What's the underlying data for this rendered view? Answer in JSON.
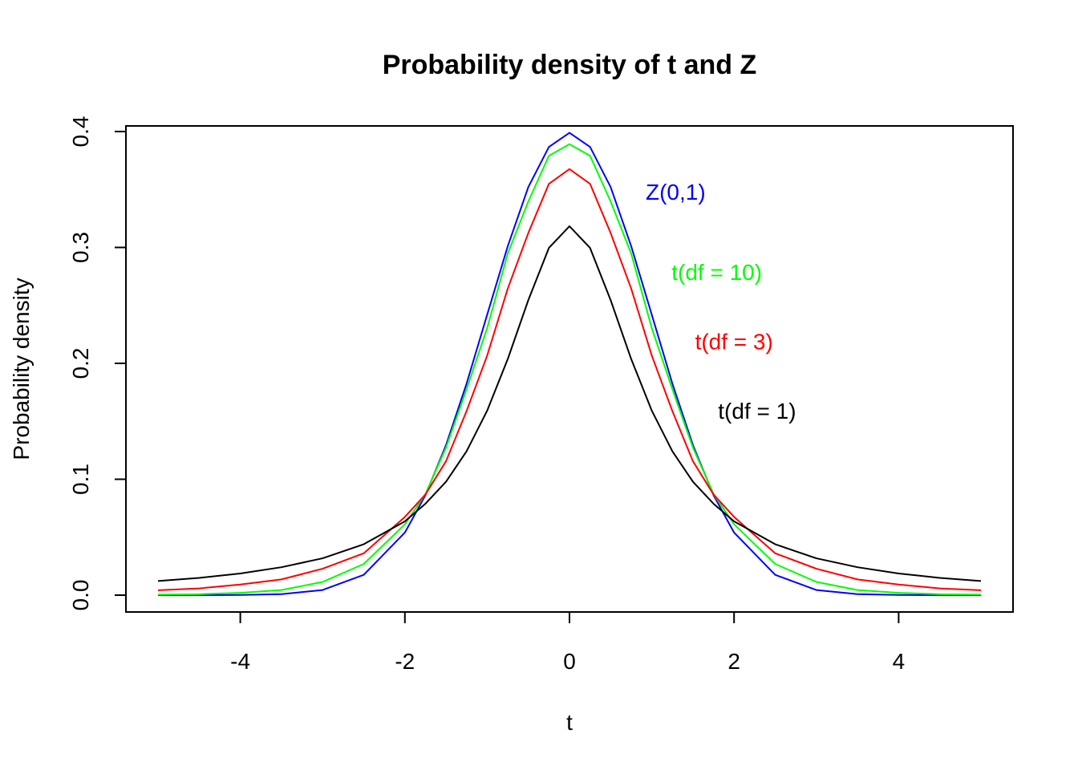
{
  "chart_data": {
    "type": "line",
    "title": "Probability density of t and Z",
    "xlabel": "t",
    "ylabel": "Probability density",
    "xlim": [
      -5,
      5
    ],
    "ylim": [
      0,
      0.4
    ],
    "xticks": [
      -4,
      -2,
      0,
      2,
      4
    ],
    "xtick_labels": [
      "-4",
      "-2",
      "0",
      "2",
      "4"
    ],
    "yticks": [
      0.0,
      0.1,
      0.2,
      0.3,
      0.4
    ],
    "ytick_labels": [
      "0.0",
      "0.1",
      "0.2",
      "0.3",
      "0.4"
    ],
    "grid": false,
    "legend": "none",
    "series": [
      {
        "name": "Z(0,1)",
        "color": "#0000ff",
        "x": [
          -5,
          -4.5,
          -4,
          -3.5,
          -3,
          -2.5,
          -2,
          -1.75,
          -1.5,
          -1.25,
          -1,
          -0.75,
          -0.5,
          -0.25,
          0,
          0.25,
          0.5,
          0.75,
          1,
          1.25,
          1.5,
          1.75,
          2,
          2.5,
          3,
          3.5,
          4,
          4.5,
          5
        ],
        "y": [
          1.5e-06,
          1.6e-05,
          0.000134,
          0.000873,
          0.00443,
          0.0175,
          0.054,
          0.0863,
          0.1295,
          0.1826,
          0.242,
          0.3011,
          0.3521,
          0.3867,
          0.3989,
          0.3867,
          0.3521,
          0.3011,
          0.242,
          0.1826,
          0.1295,
          0.0863,
          0.054,
          0.0175,
          0.00443,
          0.000873,
          0.000134,
          1.6e-05,
          1.5e-06
        ]
      },
      {
        "name": "t(df = 10)",
        "color": "#00ff00",
        "x": [
          -5,
          -4.5,
          -4,
          -3.5,
          -3,
          -2.5,
          -2,
          -1.75,
          -1.5,
          -1.25,
          -1,
          -0.75,
          -0.5,
          -0.25,
          0,
          0.25,
          0.5,
          0.75,
          1,
          1.25,
          1.5,
          1.75,
          2,
          2.5,
          3,
          3.5,
          4,
          4.5,
          5
        ],
        "y": [
          0.000396,
          0.000808,
          0.00203,
          0.0044,
          0.0114,
          0.0269,
          0.0611,
          0.0873,
          0.1274,
          0.1778,
          0.2304,
          0.2947,
          0.3397,
          0.3791,
          0.3891,
          0.3791,
          0.3397,
          0.2947,
          0.2304,
          0.1778,
          0.1274,
          0.0873,
          0.0611,
          0.0269,
          0.0114,
          0.0044,
          0.00203,
          0.000808,
          0.000396
        ]
      },
      {
        "name": "t(df = 3)",
        "color": "#ff0000",
        "x": [
          -5,
          -4.5,
          -4,
          -3.5,
          -3,
          -2.5,
          -2,
          -1.75,
          -1.5,
          -1.25,
          -1,
          -0.75,
          -0.5,
          -0.25,
          0,
          0.25,
          0.5,
          0.75,
          1,
          1.25,
          1.5,
          1.75,
          2,
          2.5,
          3,
          3.5,
          4,
          4.5,
          5
        ],
        "y": [
          0.00422,
          0.00582,
          0.00916,
          0.0136,
          0.0228,
          0.0361,
          0.0675,
          0.0869,
          0.1156,
          0.1589,
          0.2067,
          0.2645,
          0.3125,
          0.3549,
          0.3676,
          0.3549,
          0.3125,
          0.2645,
          0.2067,
          0.1589,
          0.1156,
          0.0869,
          0.0675,
          0.0361,
          0.0228,
          0.0136,
          0.00916,
          0.00582,
          0.00422
        ]
      },
      {
        "name": "t(df = 1)",
        "color": "#000000",
        "x": [
          -5,
          -4.5,
          -4,
          -3.5,
          -3,
          -2.5,
          -2,
          -1.75,
          -1.5,
          -1.25,
          -1,
          -0.75,
          -0.5,
          -0.25,
          0,
          0.25,
          0.5,
          0.75,
          1,
          1.25,
          1.5,
          1.75,
          2,
          2.5,
          3,
          3.5,
          4,
          4.5,
          5
        ],
        "y": [
          0.0122,
          0.0149,
          0.0187,
          0.0241,
          0.0318,
          0.0439,
          0.0637,
          0.0789,
          0.0979,
          0.1242,
          0.1592,
          0.2037,
          0.2546,
          0.2996,
          0.3183,
          0.2996,
          0.2546,
          0.2037,
          0.1592,
          0.1242,
          0.0979,
          0.0789,
          0.0637,
          0.0439,
          0.0318,
          0.0241,
          0.0187,
          0.0149,
          0.0122
        ]
      }
    ],
    "annotations": [
      {
        "text": "Z(0,1)",
        "x": 1.29,
        "y": 0.348,
        "color": "#0000ff"
      },
      {
        "text": "t(df = 10)",
        "x": 1.79,
        "y": 0.279,
        "color": "#00ff00"
      },
      {
        "text": "t(df = 3)",
        "x": 2.0,
        "y": 0.219,
        "color": "#ff0000"
      },
      {
        "text": "t(df = 1)",
        "x": 2.28,
        "y": 0.159,
        "color": "#000000"
      }
    ]
  }
}
